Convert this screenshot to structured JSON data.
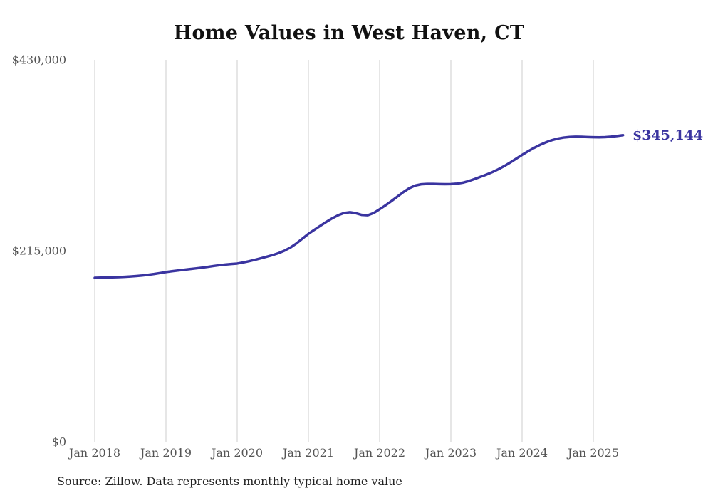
{
  "title": "Home Values in West Haven, CT",
  "source_note": "Source: Zillow. Data represents monthly typical home value",
  "end_label": "$345,144",
  "colors": {
    "background": "#FFFFFF",
    "line": "#3A34A0",
    "grid": "#CCCCCC",
    "title_text": "#111111",
    "tick_text": "#555555",
    "source_text": "#222222",
    "end_label_text": "#3A34A0"
  },
  "chart_data": {
    "type": "line",
    "title": "Home Values in West Haven, CT",
    "xlabel": "",
    "ylabel": "",
    "ylim": [
      0,
      430000
    ],
    "grid": "vertical-only",
    "legend_position": "none",
    "start_month": "Jan 2018",
    "end_month": "Jun 2025",
    "cadence": "monthly",
    "end_value": 345144,
    "end_point_label": "$345,144",
    "y_ticks": [
      {
        "value": 0,
        "label": "$0"
      },
      {
        "value": 215000,
        "label": "$215,000"
      },
      {
        "value": 430000,
        "label": "$430,000"
      }
    ],
    "x_ticks": [
      {
        "month_index": 0,
        "label": "Jan 2018"
      },
      {
        "month_index": 12,
        "label": "Jan 2019"
      },
      {
        "month_index": 24,
        "label": "Jan 2020"
      },
      {
        "month_index": 36,
        "label": "Jan 2021"
      },
      {
        "month_index": 48,
        "label": "Jan 2022"
      },
      {
        "month_index": 60,
        "label": "Jan 2023"
      },
      {
        "month_index": 72,
        "label": "Jan 2024"
      },
      {
        "month_index": 84,
        "label": "Jan 2025"
      }
    ],
    "series": [
      {
        "name": "Typical home value",
        "values": [
          184500,
          184700,
          184900,
          185100,
          185300,
          185600,
          186000,
          186500,
          187100,
          187900,
          188800,
          189900,
          191000,
          191900,
          192700,
          193500,
          194300,
          195100,
          195900,
          196800,
          197800,
          198700,
          199500,
          200100,
          200600,
          201800,
          203200,
          204800,
          206500,
          208300,
          210200,
          212400,
          215200,
          218800,
          223400,
          228700,
          234100,
          238600,
          243100,
          247500,
          251500,
          255000,
          257500,
          258400,
          257300,
          255400,
          255000,
          257500,
          261800,
          266200,
          271000,
          276100,
          281100,
          285500,
          288500,
          289900,
          290300,
          290300,
          290100,
          290000,
          290100,
          290600,
          291700,
          293500,
          295800,
          298300,
          300800,
          303600,
          306800,
          310400,
          314400,
          318700,
          323000,
          327000,
          330800,
          334200,
          337100,
          339500,
          341300,
          342500,
          343200,
          343500,
          343400,
          343100,
          342900,
          342800,
          343000,
          343500,
          344300,
          345144
        ]
      }
    ]
  }
}
